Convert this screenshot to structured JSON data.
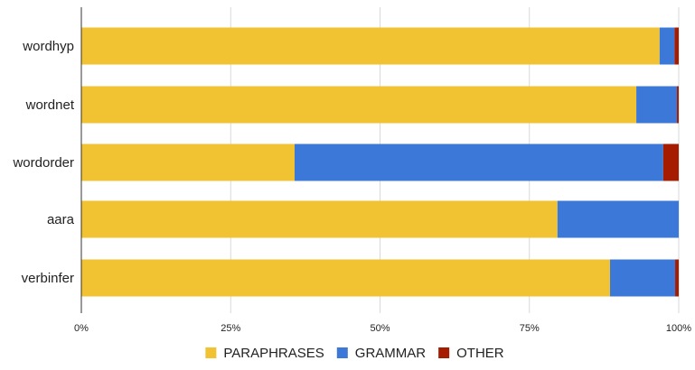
{
  "chart_data": {
    "type": "bar",
    "orientation": "horizontal",
    "stacked": "percent",
    "categories": [
      "wordhyp",
      "wordnet",
      "wordorder",
      "aara",
      "verbinfer"
    ],
    "series": [
      {
        "name": "PARAPHRASES",
        "color": "#f1c232",
        "values": [
          96.8,
          92.9,
          35.7,
          79.7,
          88.5
        ]
      },
      {
        "name": "GRAMMAR",
        "color": "#3c78d8",
        "values": [
          2.5,
          6.8,
          61.7,
          20.3,
          10.9
        ]
      },
      {
        "name": "OTHER",
        "color": "#a61c00",
        "values": [
          0.7,
          0.3,
          2.6,
          0.0,
          0.6
        ]
      }
    ],
    "xlim": [
      0,
      100
    ],
    "xticks": [
      "0%",
      "25%",
      "50%",
      "75%",
      "100%"
    ],
    "grid": true,
    "legend_position": "bottom",
    "title": "",
    "xlabel": "",
    "ylabel": ""
  }
}
